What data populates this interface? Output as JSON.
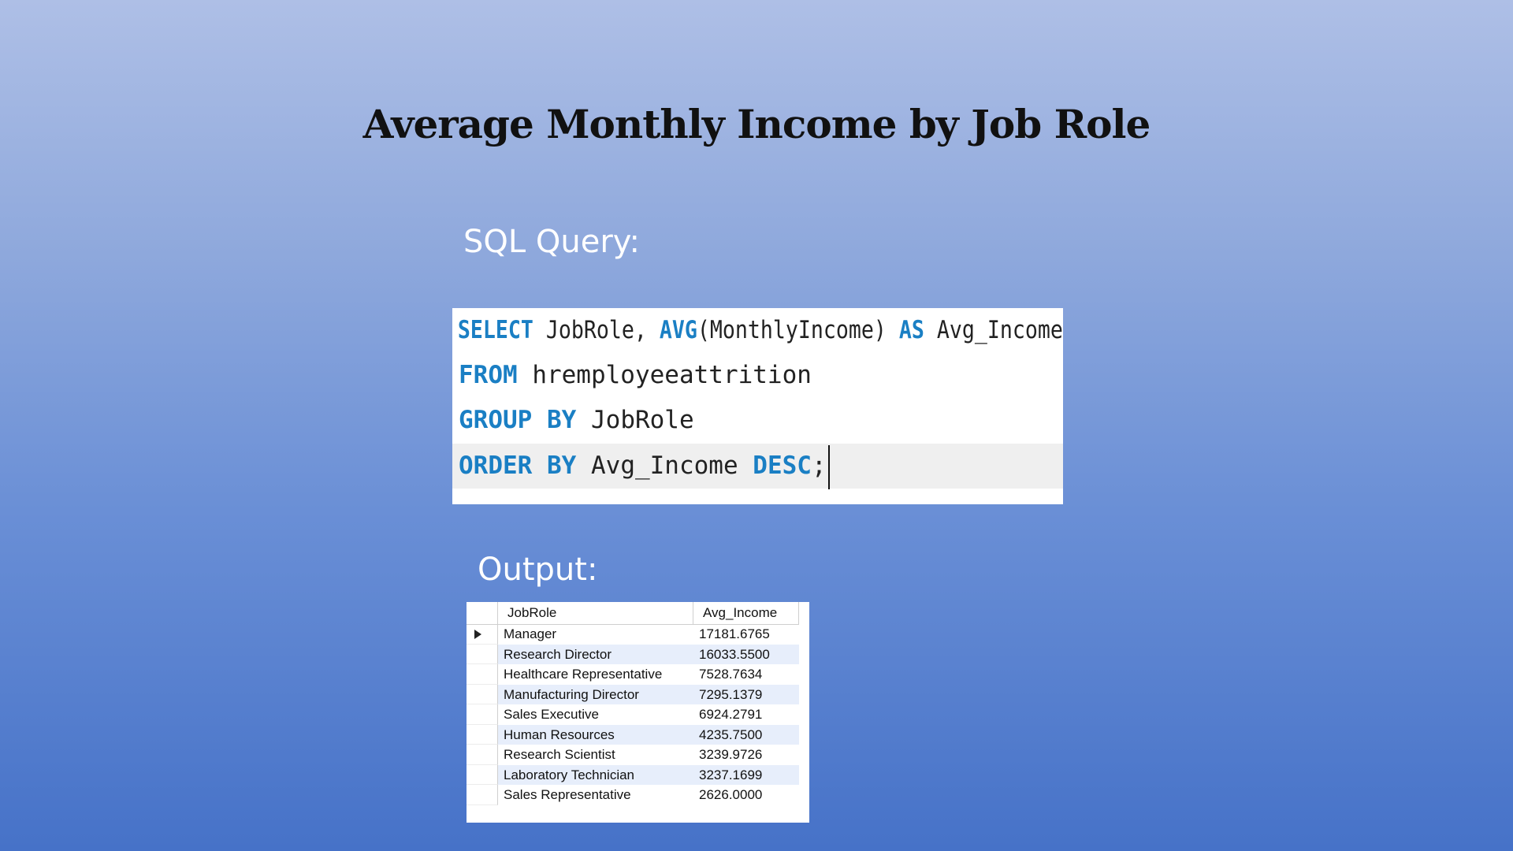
{
  "slide": {
    "title": "Average Monthly Income by Job Role",
    "sql_label": "SQL Query:",
    "output_label": "Output:"
  },
  "sql": {
    "line1": {
      "kw1": "SELECT",
      "t1": " JobRole, ",
      "kw2": "AVG",
      "t2": "(MonthlyIncome) ",
      "kw3": "AS",
      "t3": " Avg_Income"
    },
    "line2": {
      "kw1": "FROM",
      "t1": " hremployeeattrition"
    },
    "line3": {
      "kw1": "GROUP",
      "t1": " ",
      "kw2": "BY",
      "t2": " JobRole"
    },
    "line4": {
      "kw1": "ORDER",
      "t1": " ",
      "kw2": "BY",
      "t2": " Avg_Income ",
      "kw3": "DESC",
      "t3": ";"
    },
    "keyword_color": "#1a7fc4"
  },
  "result_grid": {
    "columns": [
      "JobRole",
      "Avg_Income"
    ],
    "rows": [
      [
        "Manager",
        "17181.6765"
      ],
      [
        "Research Director",
        "16033.5500"
      ],
      [
        "Healthcare Representative",
        "7528.7634"
      ],
      [
        "Manufacturing Director",
        "7295.1379"
      ],
      [
        "Sales Executive",
        "6924.2791"
      ],
      [
        "Human Resources",
        "4235.7500"
      ],
      [
        "Research Scientist",
        "3239.9726"
      ],
      [
        "Laboratory Technician",
        "3237.1699"
      ],
      [
        "Sales Representative",
        "2626.0000"
      ]
    ],
    "current_row_icon": "triangle-right-icon"
  }
}
